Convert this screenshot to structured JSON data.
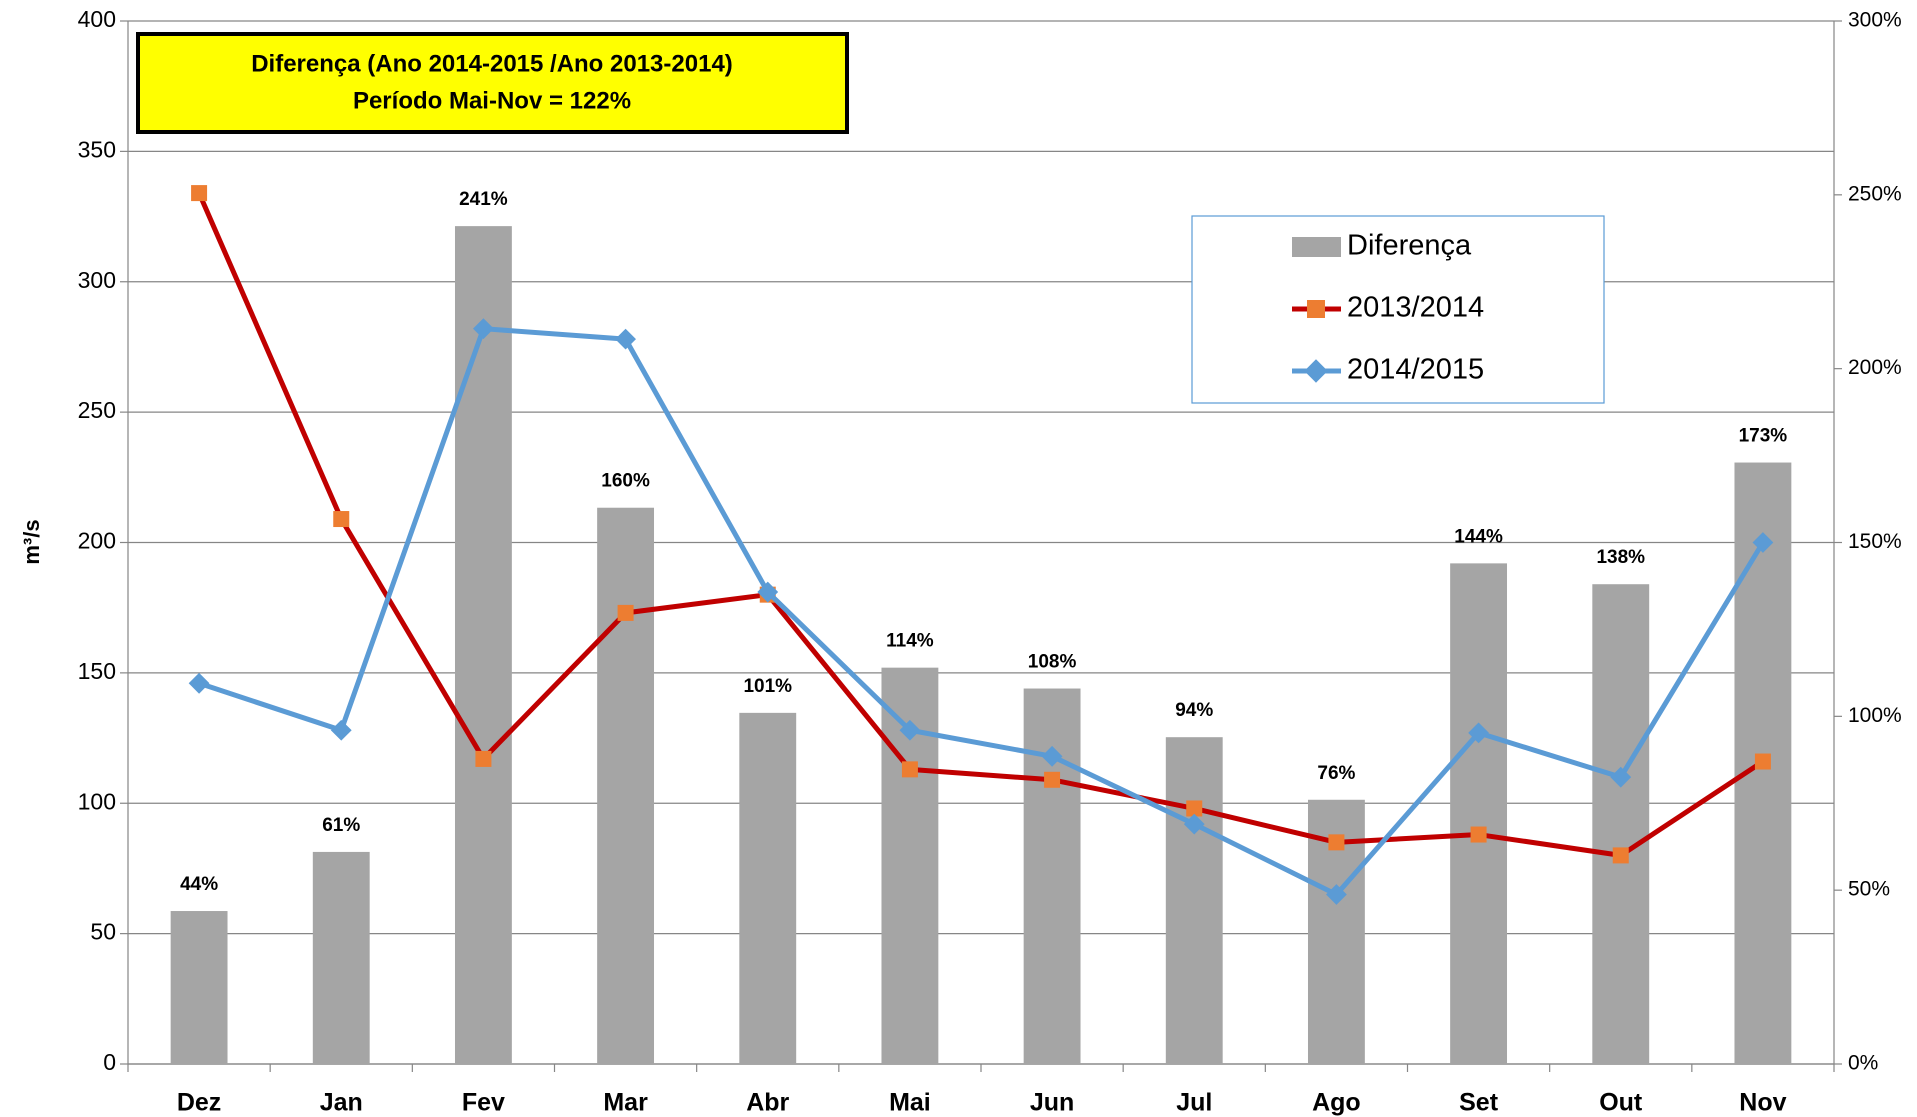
{
  "chart_data": {
    "type": "bar_line",
    "annotation": [
      "Diferença (Ano 2014-2015 /Ano 2013-2014)",
      "Período Mai-Nov = 122%"
    ],
    "y_label": "m³/s",
    "categories": [
      "Dez",
      "Jan",
      "Fev",
      "Mar",
      "Abr",
      "Mai",
      "Jun",
      "Jul",
      "Ago",
      "Set",
      "Out",
      "Nov"
    ],
    "series": [
      {
        "name": "Diferença",
        "type": "bar",
        "axis": "y2",
        "color": "#a5a5a5",
        "values": [
          44,
          61,
          241,
          160,
          101,
          114,
          108,
          94,
          76,
          144,
          138,
          173
        ],
        "value_labels": [
          "44%",
          "61%",
          "241%",
          "160%",
          "101%",
          "114%",
          "108%",
          "94%",
          "76%",
          "144%",
          "138%",
          "173%"
        ]
      },
      {
        "name": "2013/2014",
        "type": "line",
        "marker": "square",
        "color": "#c00000",
        "marker_color": "#ed7d31",
        "values": [
          334,
          209,
          117,
          173,
          180,
          113,
          109,
          98,
          85,
          88,
          80,
          116
        ]
      },
      {
        "name": "2014/2015",
        "type": "line",
        "marker": "diamond",
        "color": "#5b9bd5",
        "marker_color": "#5b9bd5",
        "values": [
          146,
          128,
          282,
          278,
          181,
          128,
          118,
          92,
          65,
          127,
          110,
          200
        ]
      }
    ],
    "ylim": [
      0,
      400
    ],
    "yticks": [
      0,
      50,
      100,
      150,
      200,
      250,
      300,
      350,
      400
    ],
    "y2lim": [
      0,
      300
    ],
    "y2ticks": [
      {
        "value": 0,
        "label": "0%"
      },
      {
        "value": 50,
        "label": "50%"
      },
      {
        "value": 100,
        "label": "100%"
      },
      {
        "value": 150,
        "label": "150%"
      },
      {
        "value": 200,
        "label": "200%"
      },
      {
        "value": 250,
        "label": "250%"
      },
      {
        "value": 300,
        "label": "300%"
      }
    ],
    "grid": true
  }
}
